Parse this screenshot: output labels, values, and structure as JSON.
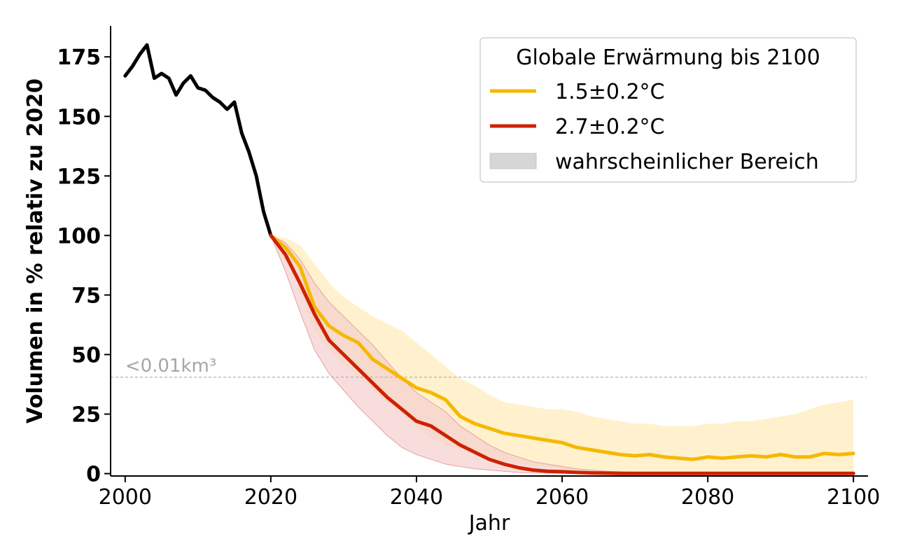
{
  "chart_data": {
    "type": "line",
    "xlabel": "Jahr",
    "ylabel": "Volumen in % relativ zu 2020",
    "xlim": [
      1998,
      2102
    ],
    "ylim": [
      -1,
      188
    ],
    "xticks": [
      2000,
      2020,
      2040,
      2060,
      2080,
      2100
    ],
    "yticks": [
      0,
      25,
      50,
      75,
      100,
      125,
      150,
      175
    ],
    "grid": false,
    "legend": {
      "title": "Globale Erwärmung bis 2100",
      "placement": "top-right",
      "entries": [
        "1.5±0.2°C",
        "2.7±0.2°C",
        "wahrscheinlicher Bereich"
      ]
    },
    "threshold": {
      "y": 40.5,
      "label": "<0.01km³",
      "color": "#b8b8b8"
    },
    "colors": {
      "observed": "#000000",
      "s15": "#f5b800",
      "s15_band": "#ffeec4",
      "s27": "#cc2200",
      "s27_band": "#f5cfcf",
      "legend_band": "#d6d6d6"
    },
    "series": [
      {
        "name": "",
        "role": "observed",
        "x": [
          2000,
          2001,
          2002,
          2003,
          2004,
          2005,
          2006,
          2007,
          2008,
          2009,
          2010,
          2011,
          2012,
          2013,
          2014,
          2015,
          2016,
          2017,
          2018,
          2019,
          2020
        ],
        "values": [
          167,
          171,
          176,
          180,
          166,
          168,
          166,
          159,
          164,
          167,
          162,
          161,
          158,
          156,
          153,
          156,
          143,
          135,
          125,
          110,
          100
        ]
      },
      {
        "name": "1.5±0.2°C",
        "role": "s15",
        "x": [
          2020,
          2022,
          2024,
          2026,
          2028,
          2030,
          2032,
          2034,
          2036,
          2038,
          2040,
          2042,
          2044,
          2046,
          2048,
          2050,
          2052,
          2054,
          2056,
          2058,
          2060,
          2062,
          2064,
          2066,
          2068,
          2070,
          2072,
          2074,
          2076,
          2078,
          2080,
          2082,
          2084,
          2086,
          2088,
          2090,
          2092,
          2094,
          2096,
          2098,
          2100
        ],
        "values": [
          100,
          95,
          87,
          70,
          62,
          58,
          55,
          48,
          44,
          40,
          36,
          34,
          31,
          24,
          21,
          19,
          17,
          16,
          15,
          14,
          13,
          11,
          10,
          9,
          8,
          7.5,
          8,
          7,
          6.5,
          6,
          7,
          6.5,
          7,
          7.5,
          7,
          8,
          7,
          7,
          8.5,
          8,
          8.5
        ],
        "band_low": [
          100,
          90,
          76,
          60,
          52,
          46,
          41,
          35,
          30,
          25,
          20,
          15,
          12,
          10,
          8,
          6,
          5,
          4,
          3,
          3,
          2,
          1,
          1,
          1,
          0.5,
          0.5,
          0.5,
          0.5,
          0.5,
          0.5,
          0.5,
          0.5,
          0.5,
          0.5,
          0.5,
          0.5,
          0.5,
          0.5,
          0.5,
          0.5,
          0.5
        ],
        "band_high": [
          100,
          99,
          96,
          88,
          80,
          74,
          70,
          66,
          63,
          60,
          55,
          50,
          45,
          40,
          37,
          33,
          30,
          29,
          28,
          27,
          27,
          26,
          24,
          23,
          22,
          21,
          21,
          20,
          20,
          20,
          21,
          21,
          22,
          22,
          23,
          24,
          25,
          27,
          29,
          30,
          31
        ]
      },
      {
        "name": "2.7±0.2°C",
        "role": "s27",
        "x": [
          2020,
          2022,
          2024,
          2026,
          2028,
          2030,
          2032,
          2034,
          2036,
          2038,
          2040,
          2042,
          2044,
          2046,
          2048,
          2050,
          2052,
          2054,
          2056,
          2058,
          2060,
          2062,
          2064,
          2066,
          2068,
          2070,
          2075,
          2080,
          2085,
          2090,
          2095,
          2100
        ],
        "values": [
          100,
          92,
          80,
          67,
          56,
          50,
          44,
          38,
          32,
          27,
          22,
          20,
          16,
          12,
          9,
          6,
          4,
          2.5,
          1.5,
          1,
          0.8,
          0.5,
          0.3,
          0.2,
          0.1,
          0.1,
          0.1,
          0.1,
          0.1,
          0.1,
          0.1,
          0.1
        ],
        "band_low": [
          100,
          85,
          68,
          52,
          42,
          35,
          28,
          22,
          16,
          11,
          8,
          6,
          4,
          3,
          2,
          1.5,
          1,
          0.5,
          0.3,
          0.2,
          0.1,
          0.1,
          0.1,
          0.1,
          0.1,
          0.1,
          0.1,
          0.1,
          0.1,
          0.1,
          0.1,
          0.1
        ],
        "band_high": [
          100,
          97,
          90,
          80,
          72,
          66,
          60,
          54,
          47,
          40,
          34,
          30,
          26,
          20,
          16,
          12,
          9,
          7,
          5,
          4,
          3,
          2,
          1.5,
          1,
          0.8,
          0.6,
          0.4,
          0.3,
          0.2,
          0.2,
          0.2,
          0.2
        ]
      }
    ]
  }
}
